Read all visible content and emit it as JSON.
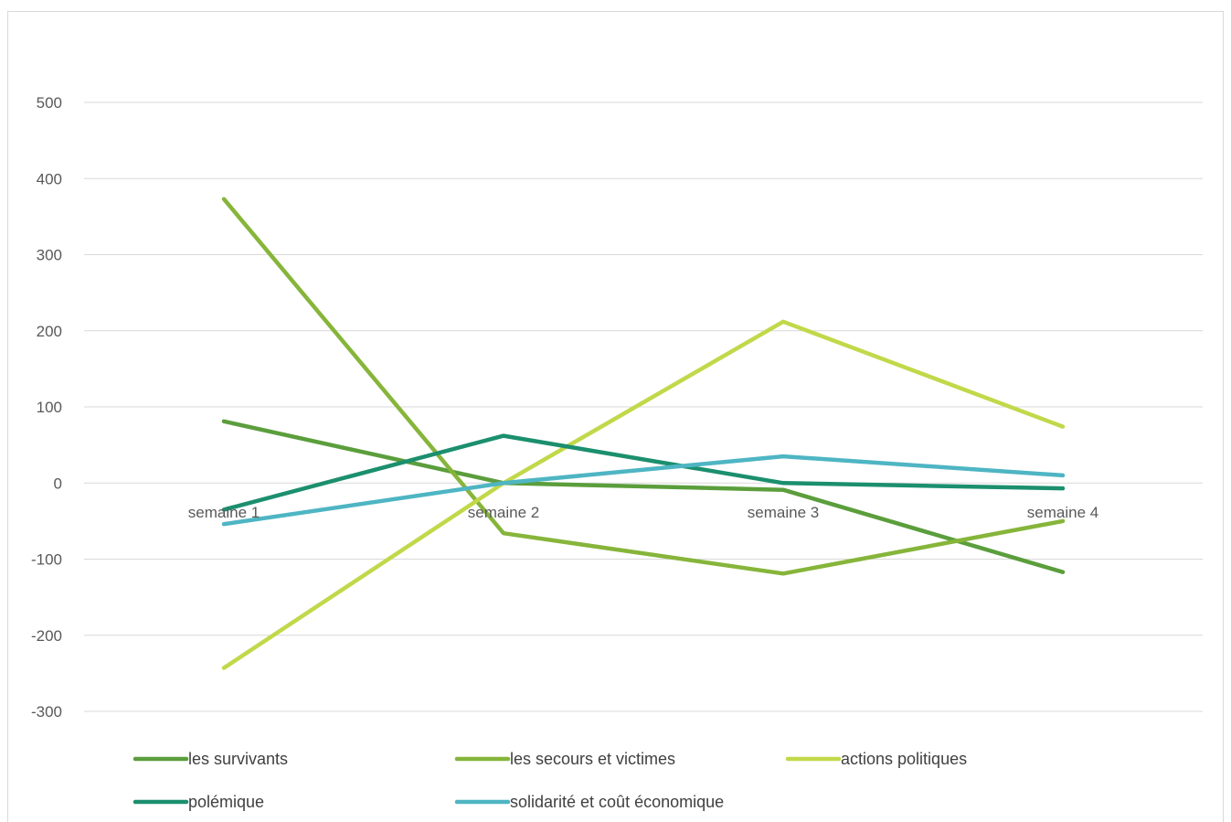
{
  "chart_data": {
    "type": "line",
    "title": "",
    "xlabel": "",
    "ylabel": "",
    "categories": [
      "semaine 1",
      "semaine 2",
      "semaine 3",
      "semaine 4"
    ],
    "ylim": [
      -300,
      500
    ],
    "yticks": [
      500,
      400,
      300,
      200,
      100,
      0,
      -100,
      -200,
      -300
    ],
    "grid": true,
    "legend_position": "bottom",
    "series": [
      {
        "name": "les survivants",
        "color": "#5b9e3c",
        "values": [
          81,
          0,
          -9,
          -117
        ]
      },
      {
        "name": "les secours et victimes",
        "color": "#86b53a",
        "values": [
          373,
          -66,
          -119,
          -50
        ]
      },
      {
        "name": "actions politiques",
        "color": "#c2d84a",
        "values": [
          -243,
          0,
          212,
          74
        ]
      },
      {
        "name": "polémique",
        "color": "#1b8f6e",
        "values": [
          -35,
          62,
          0,
          -7
        ]
      },
      {
        "name": "solidarité et coût économique",
        "color": "#4eb5c3",
        "values": [
          -54,
          0,
          35,
          10
        ]
      }
    ]
  }
}
